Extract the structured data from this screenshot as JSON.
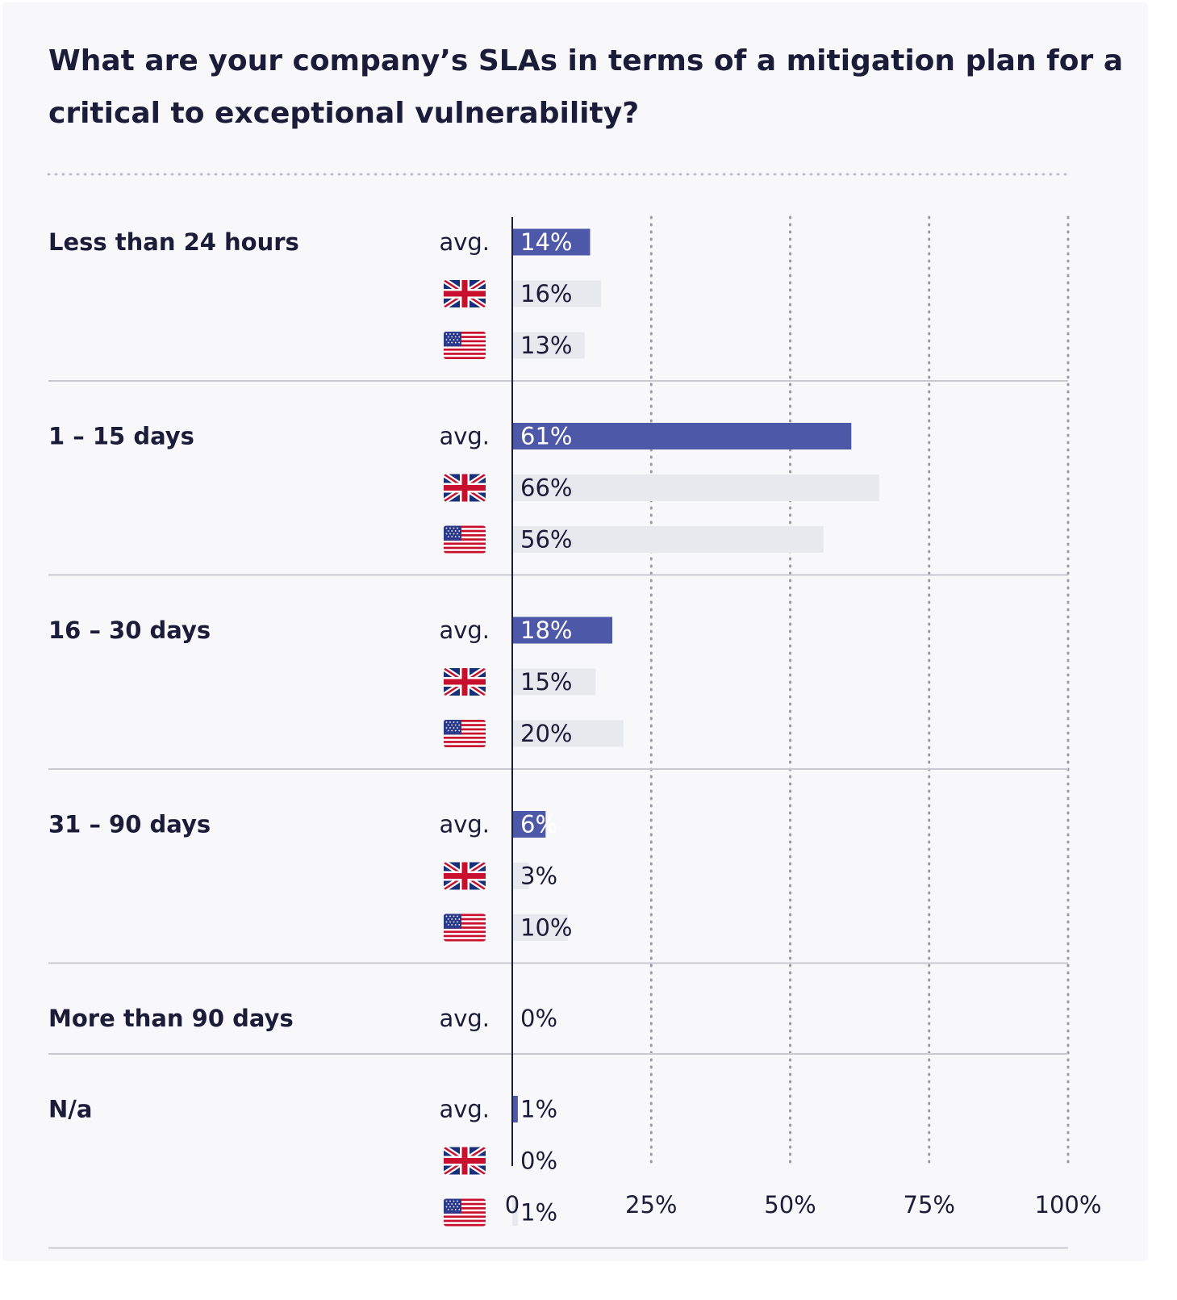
{
  "chart_data": {
    "type": "bar",
    "orientation": "horizontal",
    "title": "What are your company’s SLAs in terms of a mitigation plan for a critical to exceptional vulnerability?",
    "title_lines": [
      "What are your company’s SLAs in terms of a mitigation plan for a",
      "critical to exceptional vulnerability?"
    ],
    "categories": [
      "Less than 24 hours",
      "1 – 15 days",
      "16 – 30 days",
      "31 – 90 days",
      "More than 90 days",
      "N/a"
    ],
    "series": [
      {
        "name": "avg.",
        "key": "avg",
        "values": [
          14,
          61,
          18,
          6,
          0,
          1
        ]
      },
      {
        "name": "UK",
        "key": "uk",
        "values": [
          16,
          66,
          15,
          3,
          null,
          0
        ]
      },
      {
        "name": "US",
        "key": "us",
        "values": [
          13,
          56,
          20,
          10,
          null,
          1
        ]
      }
    ],
    "avg_row_label": "avg.",
    "value_suffix": "%",
    "xlim": [
      0,
      100
    ],
    "xticks": [
      {
        "value": 0,
        "label": "0"
      },
      {
        "value": 25,
        "label": "25%"
      },
      {
        "value": 50,
        "label": "50%"
      },
      {
        "value": 75,
        "label": "75%"
      },
      {
        "value": 100,
        "label": "100%"
      }
    ],
    "grid": true,
    "colors": {
      "avg_bar": "#4e58a8",
      "country_bar": "#e8e8ef",
      "text": "#1b1c3a",
      "avg_value_text": "#ffffff",
      "axis": "#1b1c3a",
      "grid": "#9a9aa8",
      "separator": "#c8c8d0",
      "background": "#f8f8fb"
    }
  }
}
